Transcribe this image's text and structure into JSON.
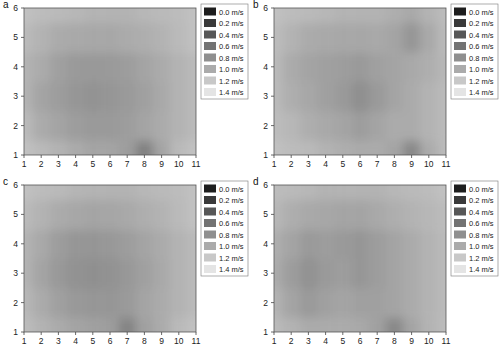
{
  "chart_data": [
    {
      "type": "heatmap",
      "title": "a",
      "x": [
        1,
        2,
        3,
        4,
        5,
        6,
        7,
        8,
        9,
        10,
        11
      ],
      "y": [
        1,
        2,
        3,
        4,
        5,
        6
      ],
      "xlim": [
        1,
        11
      ],
      "ylim": [
        1,
        6
      ],
      "xticks": [
        1,
        2,
        3,
        4,
        5,
        6,
        7,
        8,
        9,
        10,
        11
      ],
      "yticks": [
        1,
        2,
        3,
        4,
        5,
        6
      ],
      "cells": [
        [
          1.15,
          1.1,
          1.05,
          1.0,
          0.95,
          0.95,
          0.9,
          0.7,
          0.95,
          1.1,
          1.15
        ],
        [
          1.1,
          1.0,
          0.95,
          0.9,
          0.88,
          0.88,
          0.9,
          0.95,
          1.0,
          1.05,
          1.1
        ],
        [
          1.05,
          0.95,
          0.9,
          0.85,
          0.83,
          0.85,
          0.88,
          0.92,
          0.98,
          1.05,
          1.1
        ],
        [
          1.05,
          1.0,
          0.92,
          0.88,
          0.87,
          0.88,
          0.9,
          0.95,
          1.0,
          1.05,
          1.1
        ],
        [
          1.1,
          1.05,
          1.0,
          0.98,
          0.97,
          0.97,
          1.0,
          1.02,
          1.05,
          1.1,
          1.15
        ],
        [
          1.15,
          1.12,
          1.1,
          1.08,
          1.05,
          1.05,
          1.05,
          1.08,
          1.1,
          1.12,
          1.15
        ]
      ],
      "colorbar": {
        "range": [
          0,
          1.4
        ],
        "ticks": [
          {
            "value": 0,
            "label": "0.0 m/s"
          },
          {
            "value": 0.2,
            "label": "0.2 m/s"
          },
          {
            "value": 0.4,
            "label": "0.4 m/s"
          },
          {
            "value": 0.6,
            "label": "0.6 m/s"
          },
          {
            "value": 0.8,
            "label": "0.8 m/s"
          },
          {
            "value": 1.0,
            "label": "1.0 m/s"
          },
          {
            "value": 1.2,
            "label": "1.2 m/s"
          },
          {
            "value": 1.4,
            "label": "1.4 m/s"
          }
        ]
      }
    },
    {
      "type": "heatmap",
      "title": "b",
      "x": [
        1,
        2,
        3,
        4,
        5,
        6,
        7,
        8,
        9,
        10,
        11
      ],
      "y": [
        1,
        2,
        3,
        4,
        5,
        6
      ],
      "xlim": [
        1,
        11
      ],
      "ylim": [
        1,
        6
      ],
      "xticks": [
        1,
        2,
        3,
        4,
        5,
        6,
        7,
        8,
        9,
        10,
        11
      ],
      "yticks": [
        1,
        2,
        3,
        4,
        5,
        6
      ],
      "cells": [
        [
          1.15,
          1.12,
          1.1,
          1.05,
          1.02,
          1.0,
          1.0,
          0.95,
          0.75,
          1.0,
          1.1
        ],
        [
          1.12,
          1.08,
          1.02,
          0.98,
          0.95,
          0.9,
          0.95,
          1.0,
          1.0,
          1.05,
          1.1
        ],
        [
          1.1,
          1.02,
          0.97,
          0.92,
          0.88,
          0.8,
          0.88,
          0.95,
          1.0,
          1.05,
          1.1
        ],
        [
          1.1,
          1.0,
          0.95,
          0.92,
          0.9,
          0.88,
          0.92,
          0.95,
          0.98,
          1.02,
          1.08
        ],
        [
          1.12,
          1.05,
          1.0,
          0.98,
          0.97,
          0.97,
          0.98,
          0.95,
          0.85,
          0.98,
          1.1
        ],
        [
          1.15,
          1.12,
          1.1,
          1.08,
          1.05,
          1.05,
          1.05,
          1.02,
          0.98,
          1.05,
          1.12
        ]
      ],
      "colorbar": {
        "range": [
          0,
          1.4
        ],
        "ticks": [
          {
            "value": 0,
            "label": "0.0 m/s"
          },
          {
            "value": 0.2,
            "label": "0.2 m/s"
          },
          {
            "value": 0.4,
            "label": "0.4 m/s"
          },
          {
            "value": 0.6,
            "label": "0.6 m/s"
          },
          {
            "value": 0.8,
            "label": "0.8 m/s"
          },
          {
            "value": 1.0,
            "label": "1.0 m/s"
          },
          {
            "value": 1.2,
            "label": "1.2 m/s"
          },
          {
            "value": 1.4,
            "label": "1.4 m/s"
          }
        ]
      }
    },
    {
      "type": "heatmap",
      "title": "c",
      "x": [
        1,
        2,
        3,
        4,
        5,
        6,
        7,
        8,
        9,
        10,
        11
      ],
      "y": [
        1,
        2,
        3,
        4,
        5,
        6
      ],
      "xlim": [
        1,
        11
      ],
      "ylim": [
        1,
        6
      ],
      "xticks": [
        1,
        2,
        3,
        4,
        5,
        6,
        7,
        8,
        9,
        10,
        11
      ],
      "yticks": [
        1,
        2,
        3,
        4,
        5,
        6
      ],
      "cells": [
        [
          1.12,
          1.05,
          1.0,
          0.95,
          0.92,
          0.9,
          0.72,
          0.92,
          1.0,
          1.1,
          1.15
        ],
        [
          1.08,
          1.0,
          0.92,
          0.87,
          0.85,
          0.85,
          0.88,
          0.95,
          1.0,
          1.05,
          1.1
        ],
        [
          1.05,
          0.95,
          0.87,
          0.82,
          0.8,
          0.82,
          0.86,
          0.92,
          0.98,
          1.05,
          1.1
        ],
        [
          1.05,
          0.98,
          0.9,
          0.85,
          0.84,
          0.86,
          0.9,
          0.95,
          1.0,
          1.05,
          1.1
        ],
        [
          1.1,
          1.05,
          1.0,
          0.97,
          0.95,
          0.96,
          0.98,
          1.02,
          1.05,
          1.1,
          1.15
        ],
        [
          1.15,
          1.12,
          1.1,
          1.07,
          1.05,
          1.05,
          1.05,
          1.08,
          1.1,
          1.12,
          1.15
        ]
      ],
      "colorbar": {
        "range": [
          0,
          1.4
        ],
        "ticks": [
          {
            "value": 0,
            "label": "0.0 m/s"
          },
          {
            "value": 0.2,
            "label": "0.2 m/s"
          },
          {
            "value": 0.4,
            "label": "0.4 m/s"
          },
          {
            "value": 0.6,
            "label": "0.6 m/s"
          },
          {
            "value": 0.8,
            "label": "0.8 m/s"
          },
          {
            "value": 1.0,
            "label": "1.0 m/s"
          },
          {
            "value": 1.2,
            "label": "1.2 m/s"
          },
          {
            "value": 1.4,
            "label": "1.4 m/s"
          }
        ]
      }
    },
    {
      "type": "heatmap",
      "title": "d",
      "x": [
        1,
        2,
        3,
        4,
        5,
        6,
        7,
        8,
        9,
        10,
        11
      ],
      "y": [
        1,
        2,
        3,
        4,
        5,
        6
      ],
      "xlim": [
        1,
        11
      ],
      "ylim": [
        1,
        6
      ],
      "xticks": [
        1,
        2,
        3,
        4,
        5,
        6,
        7,
        8,
        9,
        10,
        11
      ],
      "yticks": [
        1,
        2,
        3,
        4,
        5,
        6
      ],
      "cells": [
        [
          1.1,
          1.05,
          1.0,
          1.0,
          1.0,
          0.98,
          0.92,
          0.75,
          0.95,
          1.05,
          1.12
        ],
        [
          1.05,
          0.95,
          0.88,
          0.92,
          0.95,
          0.92,
          0.92,
          0.95,
          1.0,
          1.05,
          1.1
        ],
        [
          1.0,
          0.9,
          0.82,
          0.88,
          0.9,
          0.85,
          0.9,
          0.95,
          1.0,
          1.05,
          1.1
        ],
        [
          1.02,
          0.95,
          0.88,
          0.9,
          0.88,
          0.85,
          0.9,
          0.95,
          1.0,
          1.05,
          1.1
        ],
        [
          1.08,
          1.02,
          0.98,
          0.97,
          0.95,
          0.95,
          0.98,
          1.02,
          1.05,
          1.08,
          1.12
        ],
        [
          1.12,
          1.1,
          1.08,
          1.05,
          1.05,
          1.05,
          1.05,
          1.08,
          1.1,
          1.12,
          1.15
        ]
      ],
      "colorbar": {
        "range": [
          0,
          1.4
        ],
        "ticks": [
          {
            "value": 0,
            "label": "0.0 m/s"
          },
          {
            "value": 0.2,
            "label": "0.2 m/s"
          },
          {
            "value": 0.4,
            "label": "0.4 m/s"
          },
          {
            "value": 0.6,
            "label": "0.6 m/s"
          },
          {
            "value": 0.8,
            "label": "0.8 m/s"
          },
          {
            "value": 1.0,
            "label": "1.0 m/s"
          },
          {
            "value": 1.2,
            "label": "1.2 m/s"
          },
          {
            "value": 1.4,
            "label": "1.4 m/s"
          }
        ]
      }
    }
  ]
}
